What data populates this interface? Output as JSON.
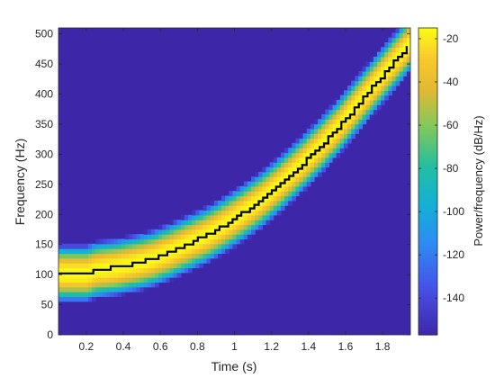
{
  "chart_data": {
    "type": "heatmap",
    "title": "",
    "xlabel": "Time (s)",
    "ylabel": "Frequency (Hz)",
    "xlim": [
      0.05,
      1.95
    ],
    "ylim": [
      0,
      510
    ],
    "x_ticks": [
      0.2,
      0.4,
      0.6,
      0.8,
      1,
      1.2,
      1.4,
      1.6,
      1.8
    ],
    "x_tick_labels": [
      "0.2",
      "0.4",
      "0.6",
      "0.8",
      "1",
      "1.2",
      "1.4",
      "1.6",
      "1.8"
    ],
    "y_ticks": [
      0,
      50,
      100,
      150,
      200,
      250,
      300,
      350,
      400,
      450,
      500
    ],
    "y_tick_labels": [
      "0",
      "50",
      "100",
      "150",
      "200",
      "250",
      "300",
      "350",
      "400",
      "450",
      "500"
    ],
    "colorbar": {
      "label": "Power/frequency (dB/Hz)",
      "limits": [
        -157,
        -15
      ],
      "ticks": [
        -20,
        -40,
        -60,
        -80,
        -100,
        -120,
        -140
      ],
      "tick_labels": [
        "-20",
        "-40",
        "-60",
        "-80",
        "-100",
        "-120",
        "-140"
      ],
      "colormap": "parula"
    },
    "ridge": {
      "color": "#000000",
      "description": "instantaneous frequency (stepped)",
      "points": [
        [
          0.05,
          102
        ],
        [
          0.2,
          102
        ],
        [
          0.25,
          108
        ],
        [
          0.35,
          112
        ],
        [
          0.45,
          118
        ],
        [
          0.55,
          126
        ],
        [
          0.65,
          138
        ],
        [
          0.75,
          152
        ],
        [
          0.85,
          166
        ],
        [
          0.95,
          184
        ],
        [
          1.05,
          204
        ],
        [
          1.15,
          226
        ],
        [
          1.25,
          252
        ],
        [
          1.35,
          280
        ],
        [
          1.45,
          310
        ],
        [
          1.55,
          342
        ],
        [
          1.65,
          378
        ],
        [
          1.75,
          414
        ],
        [
          1.85,
          450
        ],
        [
          1.93,
          478
        ]
      ]
    },
    "band": {
      "half_width_hz": 48,
      "background_db": -155,
      "peak_db": -15
    }
  }
}
